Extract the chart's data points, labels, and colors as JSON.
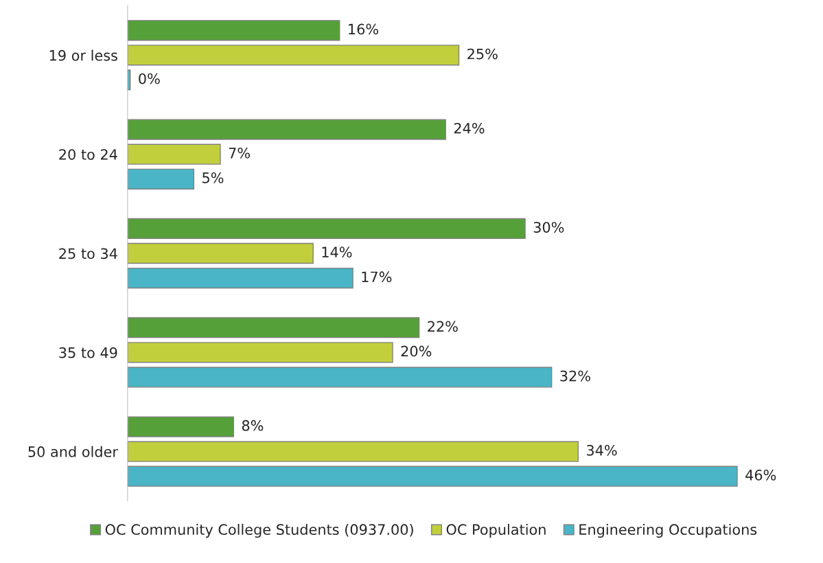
{
  "chart_data": {
    "type": "bar",
    "orientation": "horizontal",
    "categories": [
      "19 or less",
      "20 to 24",
      "25 to 34",
      "35 to 49",
      "50 and older"
    ],
    "series": [
      {
        "name": "OC Community College Students (0937.00)",
        "color": "#56a03a",
        "values": [
          16,
          24,
          30,
          22,
          8
        ],
        "value_labels": [
          "16%",
          "24%",
          "30%",
          "22%",
          "8%"
        ]
      },
      {
        "name": "OC Population",
        "color": "#c2cf3c",
        "values": [
          25,
          7,
          14,
          20,
          34
        ],
        "value_labels": [
          "25%",
          "7%",
          "14%",
          "20%",
          "34%"
        ]
      },
      {
        "name": "Engineering Occupations",
        "color": "#4ab5c6",
        "values": [
          0.2,
          5,
          17,
          32,
          46
        ],
        "value_labels": [
          "0%",
          "5%",
          "17%",
          "32%",
          "46%"
        ]
      }
    ],
    "legend": "bottom",
    "grid": false,
    "tick_labels": "y"
  }
}
